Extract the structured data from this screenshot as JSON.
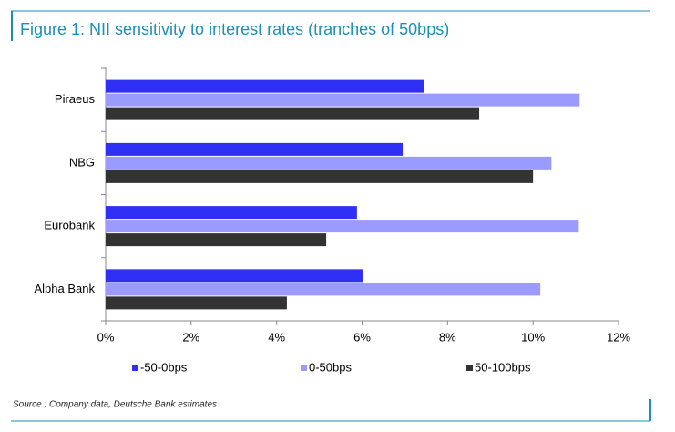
{
  "chart_data": {
    "type": "bar",
    "orientation": "horizontal",
    "title": "Figure 1: NII sensitivity to interest rates (tranches of 50bps)",
    "source": "Source : Company data, Deutsche Bank estimates",
    "categories": [
      "Piraeus",
      "NBG",
      "Eurobank",
      "Alpha Bank"
    ],
    "series": [
      {
        "name": "-50-0bps",
        "color": "#2f2ff5",
        "values": [
          7.44,
          6.95,
          5.88,
          6.01
        ]
      },
      {
        "name": "0-50bps",
        "color": "#9a9aff",
        "values": [
          11.09,
          10.43,
          11.07,
          10.17
        ]
      },
      {
        "name": "50-100bps",
        "color": "#333333",
        "values": [
          8.74,
          10.0,
          5.16,
          4.24
        ]
      }
    ],
    "xlim": [
      0,
      12
    ],
    "xticks": [
      {
        "value": 0,
        "label": "0%"
      },
      {
        "value": 2,
        "label": "2%"
      },
      {
        "value": 4,
        "label": "4%"
      },
      {
        "value": 6,
        "label": "6%"
      },
      {
        "value": 8,
        "label": "8%"
      },
      {
        "value": 10,
        "label": "10%"
      },
      {
        "value": 12,
        "label": "12%"
      }
    ],
    "legend": "bottom"
  }
}
